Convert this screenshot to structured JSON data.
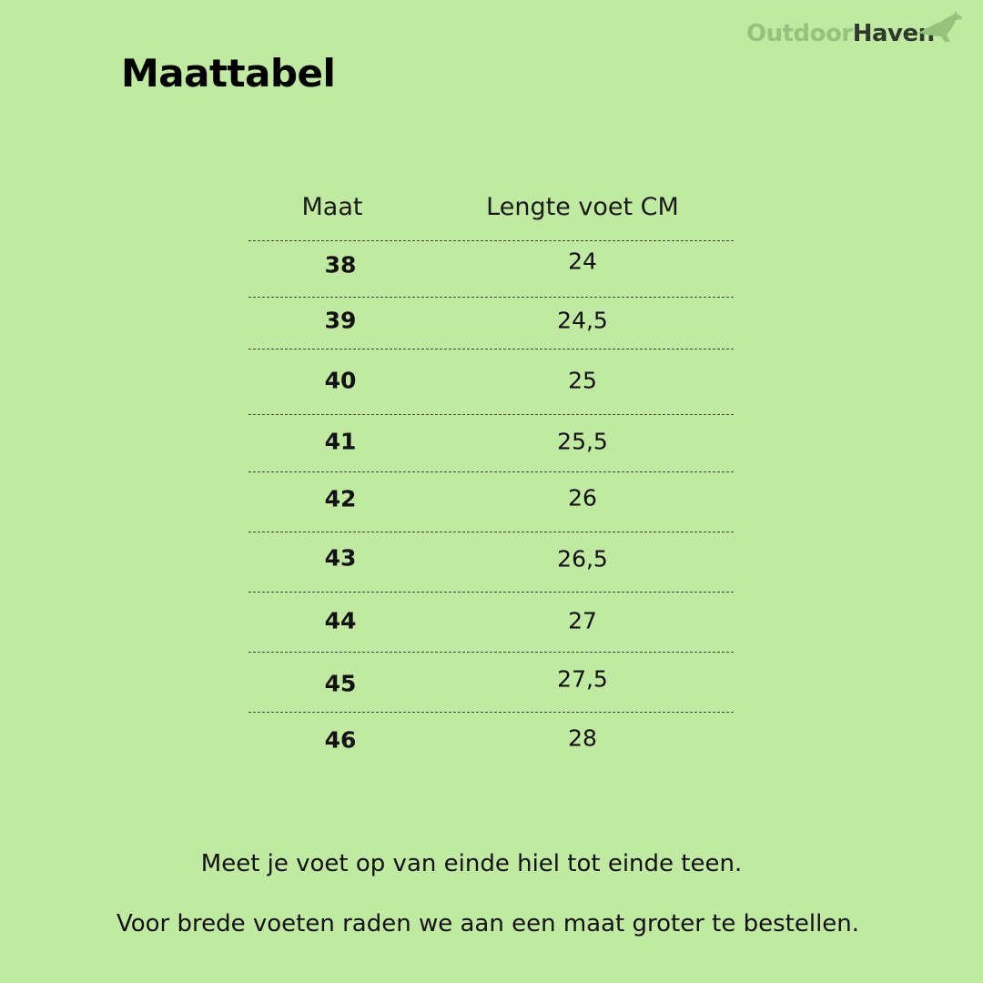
{
  "title": "Maattabel",
  "logo": {
    "part1": "Outdoor",
    "part2": "Haven",
    "icon": "kangaroo-icon",
    "colors": {
      "light": "#95c27c",
      "dark": "#2f3a2c"
    }
  },
  "background_color": "#c0e9a1",
  "table": {
    "headers": [
      "Maat",
      "Lengte voet CM"
    ],
    "rows": [
      [
        "38",
        "24"
      ],
      [
        "39",
        "24,5"
      ],
      [
        "40",
        "25"
      ],
      [
        "41",
        "25,5"
      ],
      [
        "42",
        "26"
      ],
      [
        "43",
        "26,5"
      ],
      [
        "44",
        "27"
      ],
      [
        "45",
        "27,5"
      ],
      [
        "46",
        "28"
      ]
    ]
  },
  "notes": [
    "Meet je voet op van einde hiel tot einde teen.",
    "Voor brede voeten raden we aan een maat groter te bestellen."
  ]
}
